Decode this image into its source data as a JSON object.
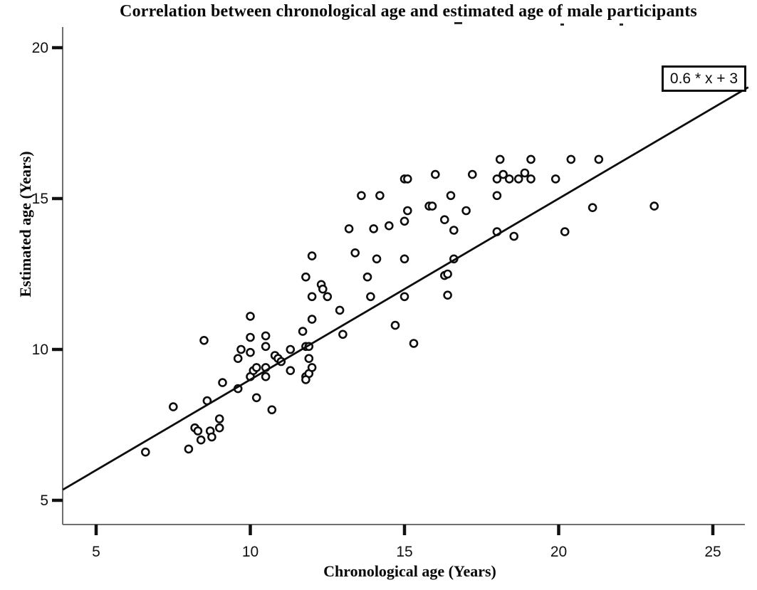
{
  "chart_data": {
    "type": "scatter",
    "title": "Correlation between chronological age and estimated age of male participants",
    "xlabel": "Chronological age (Years)",
    "ylabel": "Estimated age (Years)",
    "x_ticks": [
      5,
      10,
      15,
      20,
      25
    ],
    "y_ticks": [
      5,
      10,
      15,
      20
    ],
    "xlim": [
      3.9,
      26.4
    ],
    "ylim": [
      4.2,
      20.6
    ],
    "grid": false,
    "marker": "open-circle",
    "annotation": {
      "label": "0.6 * x + 3"
    },
    "regression_line": {
      "slope": 0.6,
      "intercept": 3,
      "x_start": 3.92,
      "x_end": 26.15
    },
    "points": [
      [
        6.6,
        6.6
      ],
      [
        7.5,
        8.1
      ],
      [
        8.0,
        6.7
      ],
      [
        8.2,
        7.4
      ],
      [
        8.3,
        7.3
      ],
      [
        8.4,
        7.0
      ],
      [
        8.5,
        10.3
      ],
      [
        8.6,
        8.3
      ],
      [
        8.7,
        7.3
      ],
      [
        8.75,
        7.1
      ],
      [
        9.0,
        7.7
      ],
      [
        9.0,
        7.4
      ],
      [
        9.1,
        8.9
      ],
      [
        9.6,
        8.7
      ],
      [
        9.6,
        9.7
      ],
      [
        9.7,
        10.0
      ],
      [
        10.0,
        11.1
      ],
      [
        10.0,
        10.4
      ],
      [
        10.0,
        9.9
      ],
      [
        10.0,
        9.1
      ],
      [
        10.1,
        9.3
      ],
      [
        10.2,
        9.4
      ],
      [
        10.2,
        8.4
      ],
      [
        10.5,
        10.1
      ],
      [
        10.5,
        10.45
      ],
      [
        10.5,
        9.4
      ],
      [
        10.5,
        9.1
      ],
      [
        10.7,
        8.0
      ],
      [
        10.8,
        9.8
      ],
      [
        10.9,
        9.7
      ],
      [
        11.0,
        9.6
      ],
      [
        11.3,
        10.0
      ],
      [
        11.3,
        9.3
      ],
      [
        11.7,
        10.6
      ],
      [
        11.8,
        10.1
      ],
      [
        11.9,
        10.1
      ],
      [
        11.9,
        9.7
      ],
      [
        11.8,
        9.1
      ],
      [
        11.9,
        9.2
      ],
      [
        12.0,
        9.4
      ],
      [
        11.8,
        9.0
      ],
      [
        12.0,
        13.1
      ],
      [
        11.8,
        12.4
      ],
      [
        12.3,
        12.15
      ],
      [
        12.35,
        12.0
      ],
      [
        12.0,
        11.75
      ],
      [
        12.5,
        11.75
      ],
      [
        12.0,
        11.0
      ],
      [
        12.9,
        11.3
      ],
      [
        13.0,
        10.5
      ],
      [
        13.4,
        13.2
      ],
      [
        13.8,
        12.4
      ],
      [
        14.1,
        13.0
      ],
      [
        13.9,
        11.75
      ],
      [
        15.0,
        13.0
      ],
      [
        15.0,
        11.75
      ],
      [
        14.7,
        10.8
      ],
      [
        15.3,
        10.2
      ],
      [
        16.6,
        13.0
      ],
      [
        16.3,
        12.45
      ],
      [
        16.4,
        12.5
      ],
      [
        16.4,
        11.8
      ],
      [
        13.6,
        15.1
      ],
      [
        14.2,
        15.1
      ],
      [
        15.0,
        15.65
      ],
      [
        15.1,
        15.65
      ],
      [
        16.0,
        15.8
      ],
      [
        16.5,
        15.1
      ],
      [
        17.2,
        15.8
      ],
      [
        13.2,
        14.0
      ],
      [
        14.0,
        14.0
      ],
      [
        14.5,
        14.1
      ],
      [
        15.1,
        14.6
      ],
      [
        15.0,
        14.25
      ],
      [
        15.8,
        14.75
      ],
      [
        15.9,
        14.75
      ],
      [
        16.3,
        14.3
      ],
      [
        16.6,
        13.95
      ],
      [
        17.0,
        14.6
      ],
      [
        18.1,
        16.3
      ],
      [
        18.0,
        15.65
      ],
      [
        18.2,
        15.8
      ],
      [
        18.4,
        15.65
      ],
      [
        18.7,
        15.65
      ],
      [
        18.9,
        15.85
      ],
      [
        19.1,
        15.65
      ],
      [
        19.1,
        16.3
      ],
      [
        19.9,
        15.65
      ],
      [
        18.0,
        15.1
      ],
      [
        20.4,
        16.3
      ],
      [
        21.3,
        16.3
      ],
      [
        21.1,
        14.7
      ],
      [
        23.1,
        14.75
      ],
      [
        18.0,
        13.9
      ],
      [
        18.55,
        13.75
      ],
      [
        20.2,
        13.9
      ]
    ]
  },
  "colors": {
    "ink": "#0d0d0d",
    "axis": "#6f6f6f",
    "tick": "#111111",
    "background": "#ffffff"
  }
}
